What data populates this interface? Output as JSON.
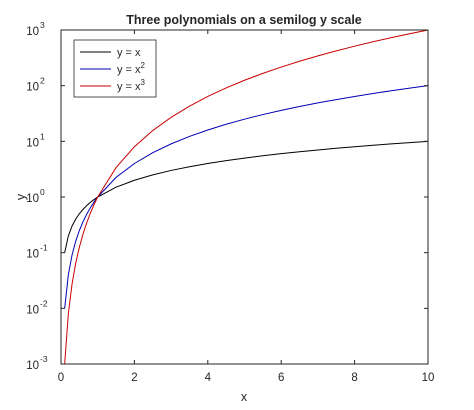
{
  "chart_data": {
    "type": "line",
    "title": "Three polynomials on a semilog y scale",
    "xlabel": "x",
    "ylabel": "y",
    "xlim": [
      0,
      10
    ],
    "ylim": [
      0.001,
      1000
    ],
    "yscale": "log",
    "grid": false,
    "legend_position": "top-left",
    "x_ticks": [
      0,
      2,
      4,
      6,
      8,
      10
    ],
    "y_ticks": [
      {
        "value": 0.001,
        "base": "10",
        "exp": "-3"
      },
      {
        "value": 0.01,
        "base": "10",
        "exp": "-2"
      },
      {
        "value": 0.1,
        "base": "10",
        "exp": "-1"
      },
      {
        "value": 1,
        "base": "10",
        "exp": "0"
      },
      {
        "value": 10,
        "base": "10",
        "exp": "1"
      },
      {
        "value": 100,
        "base": "10",
        "exp": "2"
      },
      {
        "value": 1000,
        "base": "10",
        "exp": "3"
      }
    ],
    "x": [
      0.1,
      0.2,
      0.3,
      0.4,
      0.5,
      0.6,
      0.7,
      0.8,
      0.9,
      1.0,
      1.5,
      2.0,
      2.5,
      3.0,
      3.5,
      4.0,
      4.5,
      5.0,
      5.5,
      6.0,
      6.5,
      7.0,
      7.5,
      8.0,
      8.5,
      9.0,
      9.5,
      10.0
    ],
    "series": [
      {
        "name": "y = x",
        "label_main": "y = x",
        "label_sup": "",
        "color": "#000000",
        "values": [
          0.1,
          0.2,
          0.3,
          0.4,
          0.5,
          0.6,
          0.7,
          0.8,
          0.9,
          1.0,
          1.5,
          2.0,
          2.5,
          3.0,
          3.5,
          4.0,
          4.5,
          5.0,
          5.5,
          6.0,
          6.5,
          7.0,
          7.5,
          8.0,
          8.5,
          9.0,
          9.5,
          10.0
        ]
      },
      {
        "name": "y = x2",
        "label_main": "y = x",
        "label_sup": "2",
        "color": "#0000b4",
        "values": [
          0.01,
          0.04,
          0.09,
          0.16,
          0.25,
          0.36,
          0.49,
          0.64,
          0.81,
          1.0,
          2.25,
          4.0,
          6.25,
          9.0,
          12.25,
          16.0,
          20.25,
          25.0,
          30.25,
          36.0,
          42.25,
          49.0,
          56.25,
          64.0,
          72.25,
          81.0,
          90.25,
          100.0
        ]
      },
      {
        "name": "y = x3",
        "label_main": "y = x",
        "label_sup": "3",
        "color": "#c80000",
        "values": [
          0.001,
          0.008,
          0.027,
          0.064,
          0.125,
          0.216,
          0.343,
          0.512,
          0.729,
          1.0,
          3.375,
          8.0,
          15.625,
          27.0,
          42.875,
          64.0,
          91.125,
          125.0,
          166.375,
          216.0,
          274.625,
          343.0,
          421.875,
          512.0,
          614.125,
          729.0,
          857.375,
          1000.0
        ]
      }
    ]
  }
}
